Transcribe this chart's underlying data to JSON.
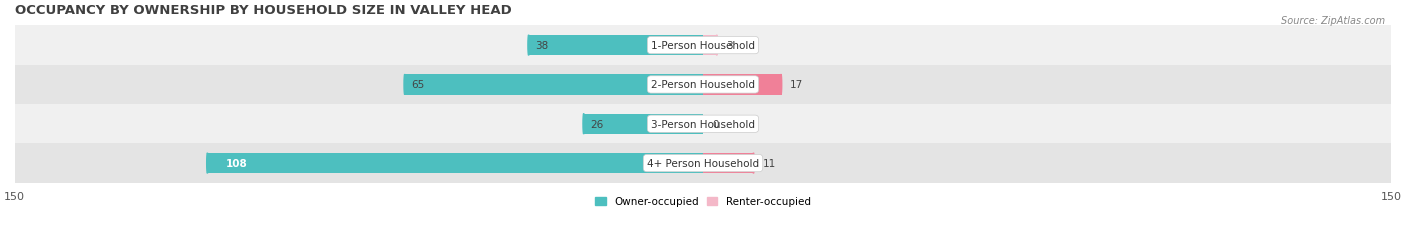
{
  "title": "OCCUPANCY BY OWNERSHIP BY HOUSEHOLD SIZE IN VALLEY HEAD",
  "source": "Source: ZipAtlas.com",
  "categories": [
    "1-Person Household",
    "2-Person Household",
    "3-Person Household",
    "4+ Person Household"
  ],
  "owner_values": [
    38,
    65,
    26,
    108
  ],
  "renter_values": [
    3,
    17,
    0,
    11
  ],
  "owner_color": "#4DBFBF",
  "renter_color": "#F08098",
  "renter_color_light": "#F4B8C8",
  "bar_bg_colors": [
    "#F0F0F0",
    "#E4E4E4",
    "#F0F0F0",
    "#E4E4E4"
  ],
  "xlim": [
    -150,
    150
  ],
  "bar_height": 0.52,
  "title_fontsize": 9.5,
  "label_fontsize": 7.5,
  "tick_fontsize": 8,
  "source_fontsize": 7,
  "legend_fontsize": 7.5
}
